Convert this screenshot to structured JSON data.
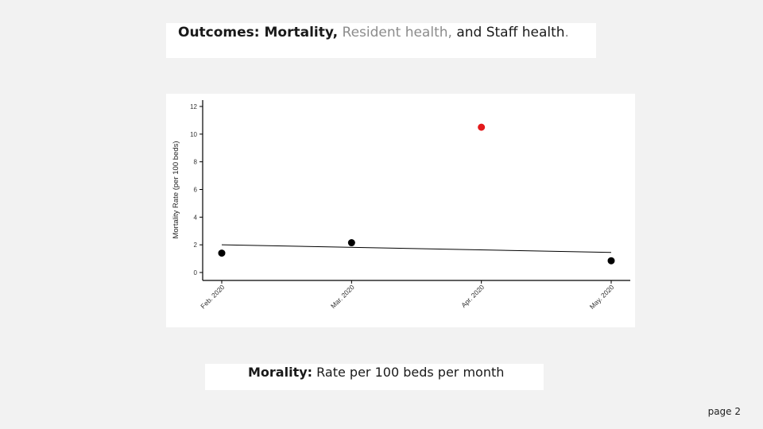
{
  "slide": {
    "title_bold": "Outcomes: Mortality,",
    "title_gray": "Resident health,",
    "title_rest": "and Staff health",
    "title_end": ".",
    "caption_bold": "Morality:",
    "caption_rest": "Rate per 100 beds per month",
    "page_label": "page 2"
  },
  "chart_data": {
    "type": "scatter",
    "title": "",
    "xlabel": "",
    "ylabel": "Mortality Rate (per 100 beds)",
    "categories": [
      "Feb. 2020",
      "Mar. 2020",
      "Apr. 2020",
      "May. 2020"
    ],
    "values": [
      1.4,
      2.15,
      10.5,
      0.85
    ],
    "highlight_index": 2,
    "highlight_color": "#e31a1c",
    "point_color": "#000000",
    "trend_line": {
      "start": 2.0,
      "end": 1.45
    },
    "ylim": [
      0,
      12
    ],
    "yticks": [
      0,
      2,
      4,
      6,
      8,
      10,
      12
    ],
    "grid": false,
    "legend": "none"
  }
}
